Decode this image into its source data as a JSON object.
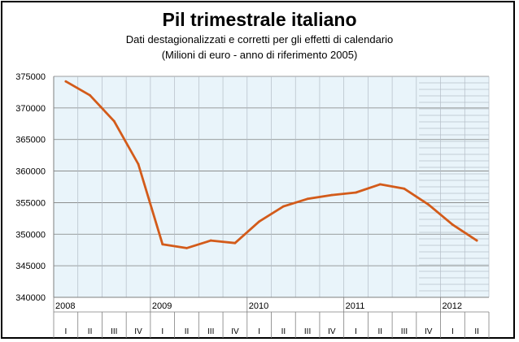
{
  "chart_data": {
    "type": "line",
    "title": "Pil trimestrale italiano",
    "subtitle": "Dati destagionalizzati e corretti per gli effetti di calendario",
    "subtitle2": "(Milioni di euro - anno di riferimento 2005)",
    "xlabel": "",
    "ylabel": "",
    "ylim": [
      340000,
      375000
    ],
    "y_ticks": [
      "340000",
      "345000",
      "350000",
      "355000",
      "360000",
      "365000",
      "370000",
      "375000"
    ],
    "years": [
      "2008",
      "2009",
      "2010",
      "2011",
      "2012"
    ],
    "quarters": [
      "I",
      "II",
      "III",
      "IV",
      "I",
      "II",
      "III",
      "IV",
      "I",
      "II",
      "III",
      "IV",
      "I",
      "II",
      "III",
      "IV",
      "I",
      "II"
    ],
    "series": [
      {
        "values": [
          374200,
          372000,
          367900,
          361100,
          348400,
          347800,
          349000,
          348600,
          352000,
          354400,
          355600,
          356200,
          356600,
          357900,
          357200,
          354700,
          351500,
          349000
        ],
        "color": "#d35b1a"
      }
    ],
    "colors": {
      "plot_background": "#e9f4fa",
      "grid": "#7f7f7f"
    },
    "grid": true
  }
}
